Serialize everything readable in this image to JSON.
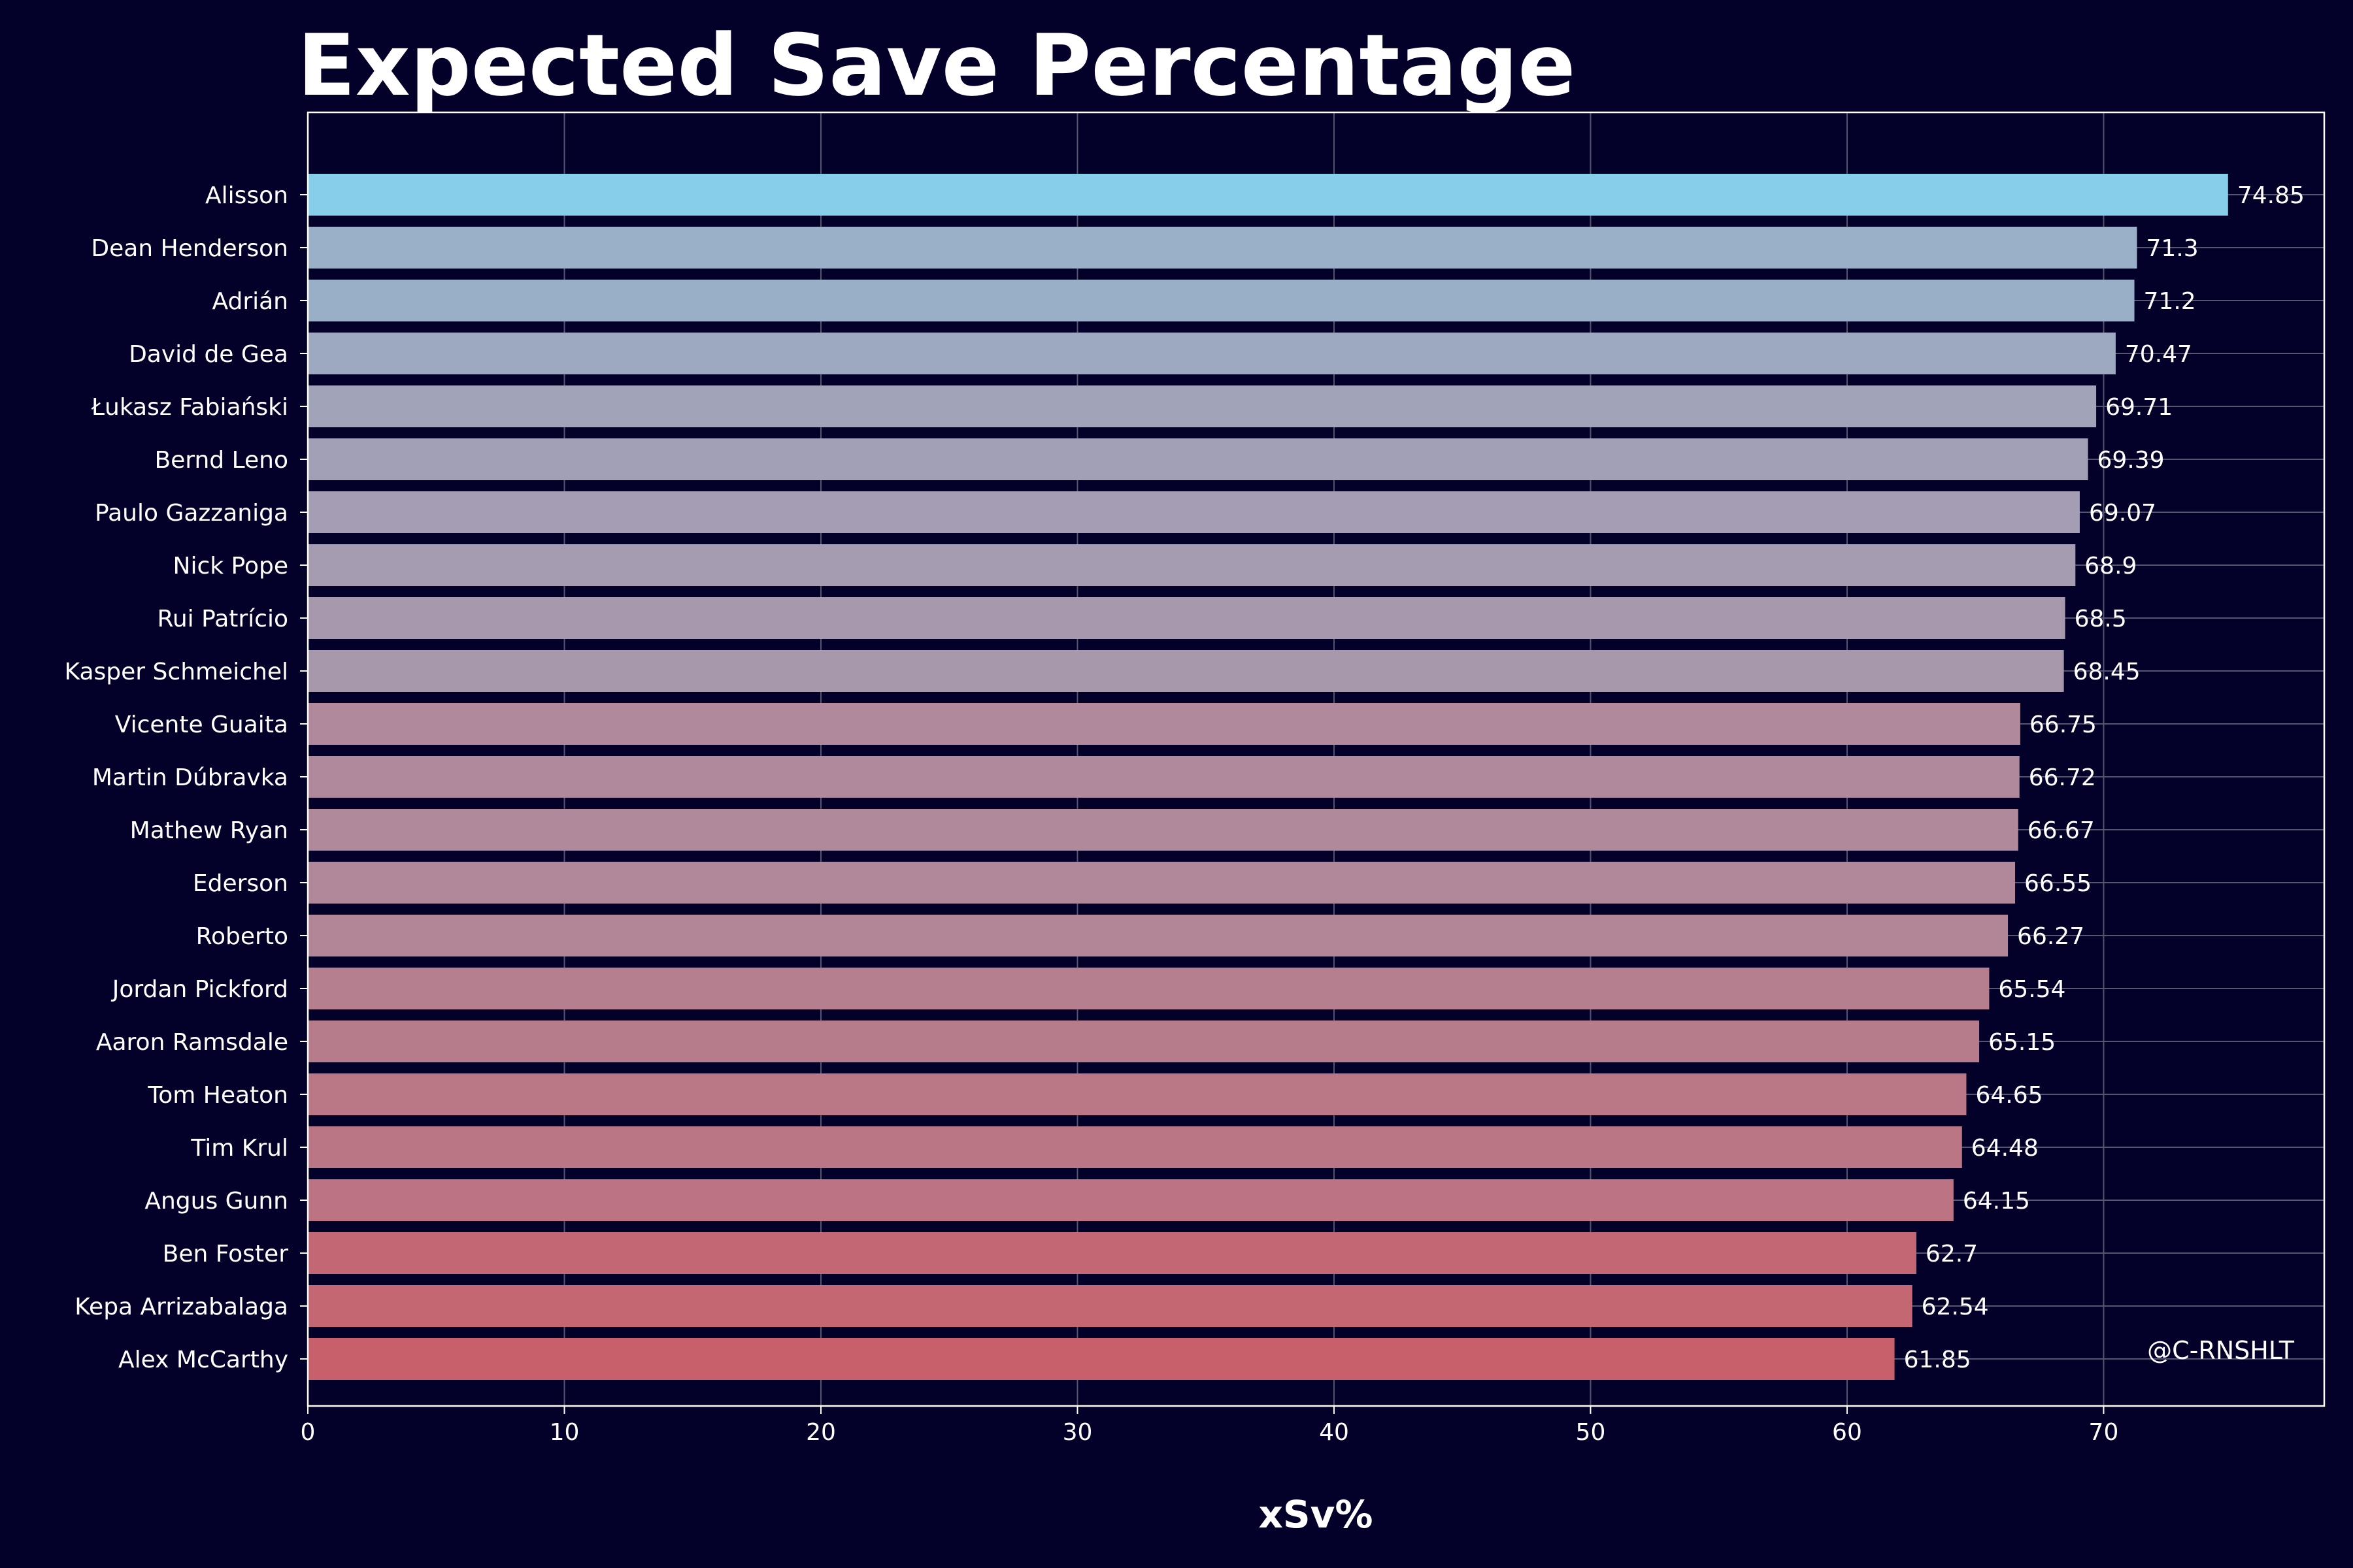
{
  "chart_data": {
    "type": "bar",
    "orientation": "horizontal",
    "title": "Expected Save Percentage",
    "xlabel": "xSv%",
    "ylabel": "",
    "xlim": [
      0,
      78.6
    ],
    "xticks": [
      0,
      10,
      20,
      30,
      40,
      50,
      60,
      70
    ],
    "grid": true,
    "categories": [
      "Alisson",
      "Dean Henderson",
      "Adrián",
      "David de Gea",
      "Łukasz Fabiański",
      "Bernd Leno",
      "Paulo Gazzaniga",
      "Nick Pope",
      "Rui Patrício",
      "Kasper Schmeichel",
      "Vicente Guaita",
      "Martin Dúbravka",
      "Mathew Ryan",
      "Ederson",
      "Roberto",
      "Jordan Pickford",
      "Aaron Ramsdale",
      "Tom Heaton",
      "Tim Krul",
      "Angus Gunn",
      "Ben Foster",
      "Kepa Arrizabalaga",
      "Alex McCarthy"
    ],
    "values": [
      74.85,
      71.3,
      71.2,
      70.47,
      69.71,
      69.39,
      69.07,
      68.9,
      68.5,
      68.45,
      66.75,
      66.72,
      66.67,
      66.55,
      66.27,
      65.54,
      65.15,
      64.65,
      64.48,
      64.15,
      62.7,
      62.54,
      61.85
    ],
    "value_labels": [
      "74.85",
      "71.3",
      "71.2",
      "70.47",
      "69.71",
      "69.39",
      "69.07",
      "68.9",
      "68.5",
      "68.45",
      "66.75",
      "66.72",
      "66.67",
      "66.55",
      "66.27",
      "65.54",
      "65.15",
      "64.65",
      "64.48",
      "64.15",
      "62.7",
      "62.54",
      "61.85"
    ],
    "colors": {
      "background": "#03002a",
      "bar_high": "#87ceeb",
      "bar_low": "#c8606c",
      "text": "#ffffff",
      "grid": "#555570"
    },
    "watermark": "@C-RNSHLT"
  }
}
